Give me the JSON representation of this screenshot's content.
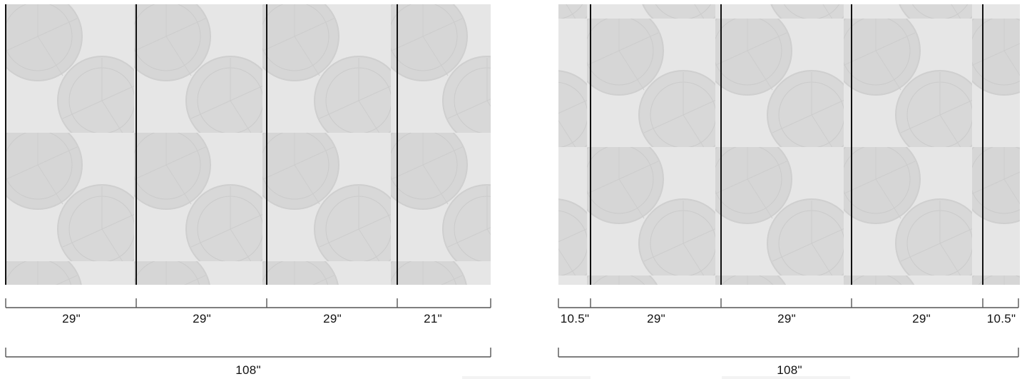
{
  "layouts": [
    {
      "name": "left",
      "panels": [
        29,
        29,
        29,
        21
      ],
      "segment_labels": [
        "29\"",
        "29\"",
        "29\"",
        "21\""
      ],
      "total_label": "108\""
    },
    {
      "name": "right",
      "panels": [
        10.5,
        29,
        29,
        29,
        10.5
      ],
      "segment_labels": [
        "10.5\"",
        "29\"",
        "29\"",
        "29\"",
        "10.5\""
      ],
      "total_label": "108\""
    }
  ],
  "colors": {
    "line": "#111111",
    "dim": "#555555",
    "wall": "#e6e6e6",
    "pattern": "#d2d2d2"
  }
}
